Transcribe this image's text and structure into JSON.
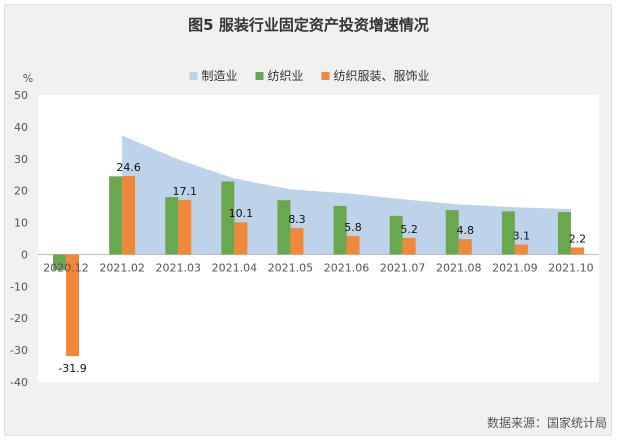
{
  "title": "图5   服装行业固定资产投资增速情况",
  "source": "数据来源：国家统计局",
  "chart_data": {
    "type": "bar",
    "unit_label": "%",
    "ylim": [
      -40,
      50
    ],
    "yticks": [
      50,
      40,
      30,
      20,
      10,
      0,
      -10,
      -20,
      -30,
      -40
    ],
    "categories": [
      "2020.12",
      "2021.02",
      "2021.03",
      "2021.04",
      "2021.05",
      "2021.06",
      "2021.07",
      "2021.08",
      "2021.09",
      "2021.10"
    ],
    "legend_position": "top",
    "series": [
      {
        "name": "制造业",
        "kind": "area",
        "color": "#bcd3ea",
        "values": [
          null,
          37.3,
          29.8,
          23.8,
          20.4,
          19.2,
          17.3,
          15.7,
          14.8,
          14.2
        ]
      },
      {
        "name": "纺织业",
        "kind": "bar",
        "color": "#6aa84f",
        "values": [
          -4.9,
          24.5,
          18.0,
          22.9,
          17.0,
          15.2,
          12.1,
          13.9,
          13.5,
          13.3
        ]
      },
      {
        "name": "纺织服装、服饰业",
        "kind": "bar",
        "color": "#f0883a",
        "values": [
          -31.9,
          24.6,
          17.1,
          10.1,
          8.3,
          5.8,
          5.2,
          4.8,
          3.1,
          2.2
        ]
      }
    ],
    "data_labels": [
      "-31.9",
      "24.6",
      "17.1",
      "10.1",
      "8.3",
      "5.8",
      "5.2",
      "4.8",
      "3.1",
      "2.2"
    ]
  }
}
